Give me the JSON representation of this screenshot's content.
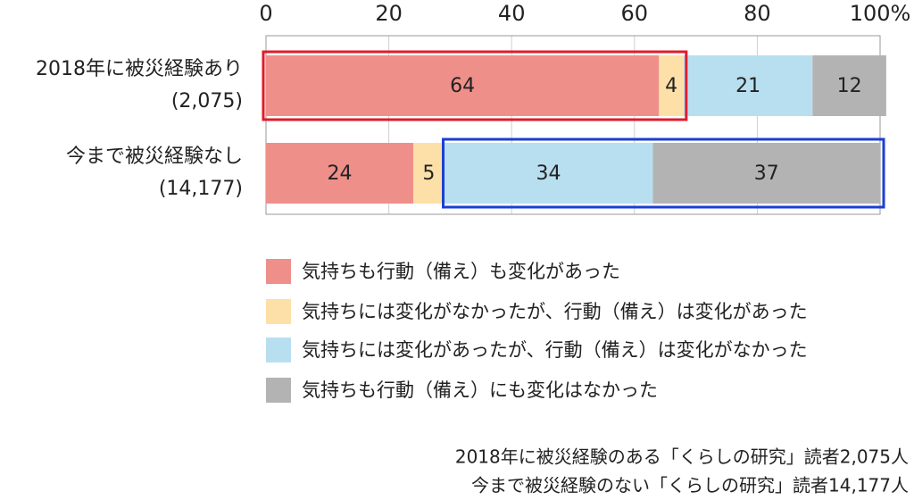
{
  "chart_data": {
    "type": "stacked-bar-horizontal",
    "categories": [
      "2018年に被災経験あり",
      "今まで被災経験なし"
    ],
    "category_counts": [
      "(2,075)",
      "(14,177)"
    ],
    "series": [
      {
        "name": "気持ちも行動（備え）も変化があった",
        "color": "#ef8f8a",
        "values": [
          64,
          24
        ]
      },
      {
        "name": "気持ちには変化がなかったが、行動（備え）は変化があった",
        "color": "#fde0a8",
        "values": [
          4,
          5
        ]
      },
      {
        "name": "気持ちには変化があったが、行動（備え）は変化がなかった",
        "color": "#b8dff0",
        "values": [
          21,
          34
        ]
      },
      {
        "name": "気持ちも行動（備え）にも変化はなかった",
        "color": "#b3b3b3",
        "values": [
          12,
          37
        ]
      }
    ],
    "xlim": [
      0,
      100
    ],
    "xticks": [
      0,
      20,
      40,
      60,
      80,
      {
        "value": 100,
        "label": "100%"
      }
    ],
    "grid": true,
    "notes": [
      "2018年に被災経験のある「くらしの研究」読者2,075人",
      "今まで被災経験のない「くらしの研究」読者14,177人"
    ]
  }
}
